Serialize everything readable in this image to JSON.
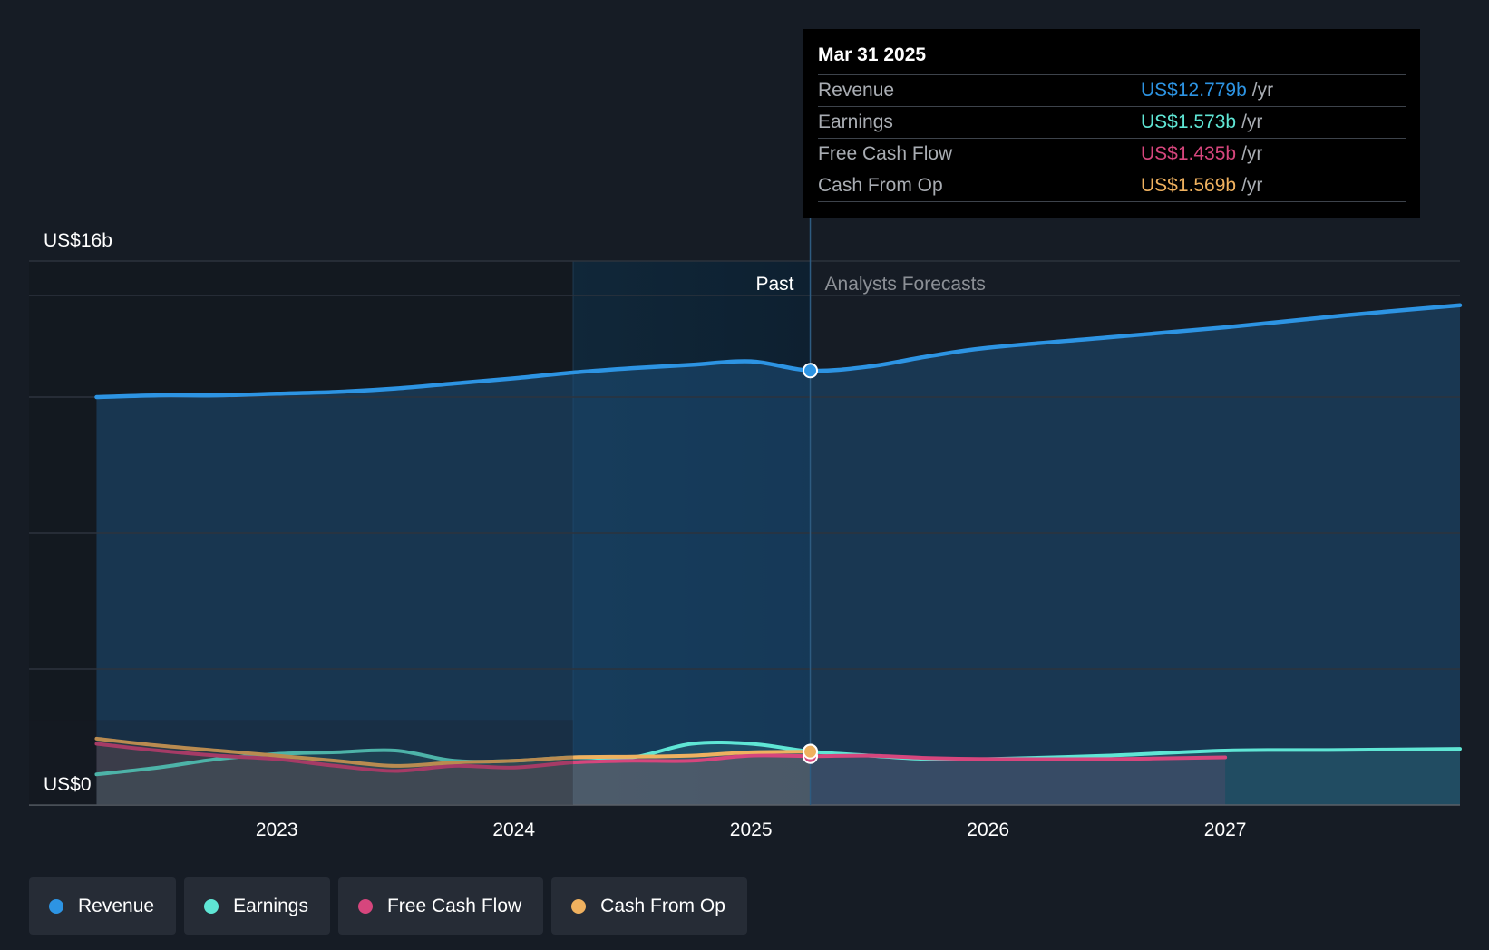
{
  "tooltip": {
    "date": "Mar 31 2025",
    "rows": [
      {
        "label": "Revenue",
        "value": "US$12.779b",
        "unit": "/yr",
        "color": "#2d94e3"
      },
      {
        "label": "Earnings",
        "value": "US$1.573b",
        "unit": "/yr",
        "color": "#5fe6d5"
      },
      {
        "label": "Free Cash Flow",
        "value": "US$1.435b",
        "unit": "/yr",
        "color": "#d6467d"
      },
      {
        "label": "Cash From Op",
        "value": "US$1.569b",
        "unit": "/yr",
        "color": "#efb15f"
      }
    ]
  },
  "legend": [
    {
      "label": "Revenue",
      "color": "#2d94e3"
    },
    {
      "label": "Earnings",
      "color": "#5fe6d5"
    },
    {
      "label": "Free Cash Flow",
      "color": "#d6467d"
    },
    {
      "label": "Cash From Op",
      "color": "#efb15f"
    }
  ],
  "chart_data": {
    "type": "line",
    "y_labels": {
      "top": "US$16b",
      "bottom": "US$0"
    },
    "ylim": [
      0,
      16
    ],
    "xlim": [
      2022.2,
      2027.99
    ],
    "x_ticks": [
      2023,
      2024,
      2025,
      2026,
      2027
    ],
    "x_tick_labels": [
      "2023",
      "2024",
      "2025",
      "2026",
      "2027"
    ],
    "highlight_start": 2024.25,
    "past_end": 2025.25,
    "past_label": "Past",
    "forecast_label": "Analysts Forecasts",
    "marker_x": 2025.25,
    "series": [
      {
        "name": "Revenue",
        "color": "#2d94e3",
        "points": [
          [
            2022.24,
            12.0
          ],
          [
            2022.5,
            12.05
          ],
          [
            2022.75,
            12.05
          ],
          [
            2023.0,
            12.1
          ],
          [
            2023.25,
            12.15
          ],
          [
            2023.5,
            12.25
          ],
          [
            2023.75,
            12.4
          ],
          [
            2024.0,
            12.55
          ],
          [
            2024.25,
            12.72
          ],
          [
            2024.5,
            12.85
          ],
          [
            2024.75,
            12.95
          ],
          [
            2025.0,
            13.05
          ],
          [
            2025.25,
            12.779
          ],
          [
            2025.5,
            12.9
          ],
          [
            2025.75,
            13.2
          ],
          [
            2026.0,
            13.45
          ],
          [
            2026.5,
            13.75
          ],
          [
            2027.0,
            14.05
          ],
          [
            2027.5,
            14.4
          ],
          [
            2027.99,
            14.7
          ]
        ]
      },
      {
        "name": "Earnings",
        "color": "#5fe6d5",
        "points": [
          [
            2022.24,
            0.9
          ],
          [
            2022.5,
            1.1
          ],
          [
            2022.75,
            1.35
          ],
          [
            2023.0,
            1.5
          ],
          [
            2023.25,
            1.55
          ],
          [
            2023.5,
            1.6
          ],
          [
            2023.75,
            1.3
          ],
          [
            2024.0,
            1.3
          ],
          [
            2024.25,
            1.4
          ],
          [
            2024.5,
            1.4
          ],
          [
            2024.75,
            1.8
          ],
          [
            2025.0,
            1.8
          ],
          [
            2025.25,
            1.573
          ],
          [
            2025.5,
            1.45
          ],
          [
            2025.75,
            1.35
          ],
          [
            2026.0,
            1.35
          ],
          [
            2026.5,
            1.45
          ],
          [
            2027.0,
            1.6
          ],
          [
            2027.5,
            1.62
          ],
          [
            2027.99,
            1.65
          ]
        ]
      },
      {
        "name": "Free Cash Flow",
        "color": "#d6467d",
        "points": [
          [
            2022.24,
            1.8
          ],
          [
            2022.5,
            1.6
          ],
          [
            2022.75,
            1.45
          ],
          [
            2023.0,
            1.35
          ],
          [
            2023.25,
            1.15
          ],
          [
            2023.5,
            1.0
          ],
          [
            2023.75,
            1.15
          ],
          [
            2024.0,
            1.1
          ],
          [
            2024.25,
            1.25
          ],
          [
            2024.5,
            1.3
          ],
          [
            2024.75,
            1.3
          ],
          [
            2025.0,
            1.45
          ],
          [
            2025.25,
            1.435
          ],
          [
            2025.5,
            1.45
          ],
          [
            2025.75,
            1.38
          ],
          [
            2026.0,
            1.35
          ],
          [
            2026.5,
            1.35
          ],
          [
            2027.0,
            1.4
          ]
        ]
      },
      {
        "name": "Cash From Op",
        "color": "#efb15f",
        "points": [
          [
            2022.24,
            1.95
          ],
          [
            2022.5,
            1.75
          ],
          [
            2022.75,
            1.6
          ],
          [
            2023.0,
            1.45
          ],
          [
            2023.25,
            1.3
          ],
          [
            2023.5,
            1.15
          ],
          [
            2023.75,
            1.25
          ],
          [
            2024.0,
            1.3
          ],
          [
            2024.25,
            1.4
          ],
          [
            2024.5,
            1.42
          ],
          [
            2024.75,
            1.45
          ],
          [
            2025.0,
            1.55
          ],
          [
            2025.25,
            1.569
          ]
        ]
      }
    ]
  }
}
